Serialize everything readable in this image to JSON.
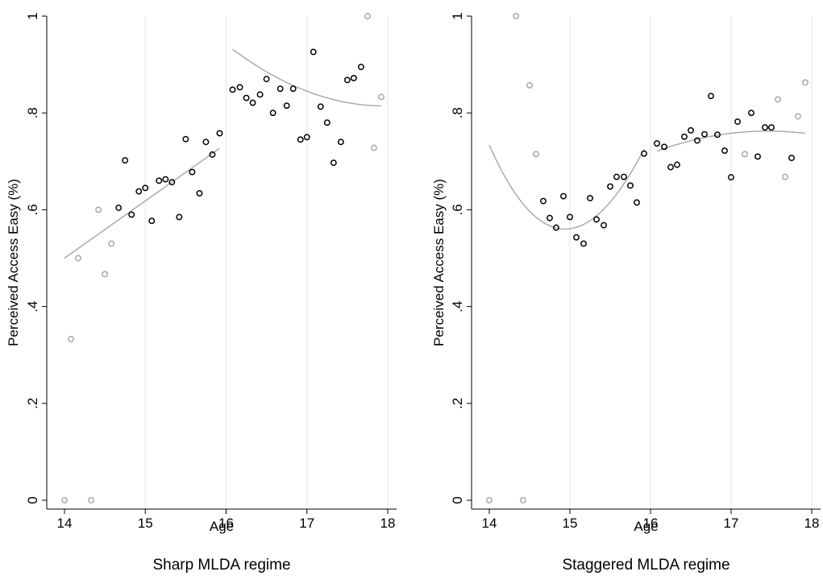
{
  "chart_data": [
    {
      "type": "scatter",
      "subtitle": "Sharp MLDA regime",
      "xlabel": "Age",
      "ylabel": "Perceived Access Easy (%)",
      "xlim": [
        14,
        18
      ],
      "ylim": [
        0,
        1
      ],
      "xticks": [
        {
          "value": 14,
          "label": "14"
        },
        {
          "value": 15,
          "label": "15"
        },
        {
          "value": 16,
          "label": "16"
        },
        {
          "value": 17,
          "label": "17"
        },
        {
          "value": 18,
          "label": "18"
        }
      ],
      "yticks": [
        {
          "value": 0,
          "label": "0"
        },
        {
          "value": 0.2,
          "label": ".2"
        },
        {
          "value": 0.4,
          "label": ".4"
        },
        {
          "value": 0.6,
          "label": ".6"
        },
        {
          "value": 0.8,
          "label": ".8"
        },
        {
          "value": 1,
          "label": "1"
        }
      ],
      "grid": "vertical",
      "colors": {
        "main": "#000000",
        "outlier": "#a6a6a6",
        "fit": "#a6a6a6"
      },
      "points_main": [
        [
          14.67,
          0.604
        ],
        [
          14.75,
          0.702
        ],
        [
          14.83,
          0.59
        ],
        [
          14.92,
          0.638
        ],
        [
          15.0,
          0.645
        ],
        [
          15.08,
          0.577
        ],
        [
          15.17,
          0.66
        ],
        [
          15.25,
          0.663
        ],
        [
          15.33,
          0.657
        ],
        [
          15.42,
          0.585
        ],
        [
          15.5,
          0.746
        ],
        [
          15.58,
          0.678
        ],
        [
          15.67,
          0.634
        ],
        [
          15.75,
          0.74
        ],
        [
          15.83,
          0.714
        ],
        [
          15.92,
          0.758
        ],
        [
          16.08,
          0.848
        ],
        [
          16.17,
          0.853
        ],
        [
          16.25,
          0.831
        ],
        [
          16.33,
          0.821
        ],
        [
          16.42,
          0.838
        ],
        [
          16.5,
          0.87
        ],
        [
          16.58,
          0.8
        ],
        [
          16.67,
          0.85
        ],
        [
          16.75,
          0.815
        ],
        [
          16.83,
          0.85
        ],
        [
          16.92,
          0.745
        ],
        [
          17.0,
          0.75
        ],
        [
          17.08,
          0.926
        ],
        [
          17.17,
          0.813
        ],
        [
          17.25,
          0.78
        ],
        [
          17.33,
          0.697
        ],
        [
          17.42,
          0.74
        ],
        [
          17.5,
          0.868
        ],
        [
          17.58,
          0.872
        ],
        [
          17.67,
          0.895
        ]
      ],
      "points_outlier": [
        [
          14.0,
          0.0
        ],
        [
          14.08,
          0.333
        ],
        [
          14.17,
          0.5
        ],
        [
          14.33,
          0.0
        ],
        [
          14.42,
          0.6
        ],
        [
          14.5,
          0.467
        ],
        [
          14.58,
          0.53
        ],
        [
          17.75,
          1.0
        ],
        [
          17.83,
          0.728
        ],
        [
          17.92,
          0.833
        ]
      ],
      "fits": [
        {
          "kind": "linear",
          "x0": 14.0,
          "x1": 15.92,
          "a": 0.5,
          "b": 0.1182
        },
        {
          "kind": "quadratic",
          "x0": 16.08,
          "x1": 17.92,
          "a": 0.8449,
          "b": -0.0637,
          "c": 0.0334
        }
      ]
    },
    {
      "type": "scatter",
      "subtitle": "Staggered MLDA regime",
      "xlabel": "Age",
      "ylabel": "Perceived Access Easy (%)",
      "xlim": [
        14,
        18
      ],
      "ylim": [
        0,
        1
      ],
      "xticks": [
        {
          "value": 14,
          "label": "14"
        },
        {
          "value": 15,
          "label": "15"
        },
        {
          "value": 16,
          "label": "16"
        },
        {
          "value": 17,
          "label": "17"
        },
        {
          "value": 18,
          "label": "18"
        }
      ],
      "yticks": [
        {
          "value": 0,
          "label": "0"
        },
        {
          "value": 0.2,
          "label": ".2"
        },
        {
          "value": 0.4,
          "label": ".4"
        },
        {
          "value": 0.6,
          "label": ".6"
        },
        {
          "value": 0.8,
          "label": ".8"
        },
        {
          "value": 1,
          "label": "1"
        }
      ],
      "grid": "vertical",
      "colors": {
        "main": "#000000",
        "outlier": "#a6a6a6",
        "fit": "#a6a6a6"
      },
      "points_main": [
        [
          14.67,
          0.618
        ],
        [
          14.75,
          0.583
        ],
        [
          14.83,
          0.563
        ],
        [
          14.92,
          0.628
        ],
        [
          15.0,
          0.585
        ],
        [
          15.08,
          0.543
        ],
        [
          15.17,
          0.53
        ],
        [
          15.25,
          0.624
        ],
        [
          15.33,
          0.58
        ],
        [
          15.42,
          0.568
        ],
        [
          15.5,
          0.648
        ],
        [
          15.58,
          0.668
        ],
        [
          15.67,
          0.668
        ],
        [
          15.75,
          0.65
        ],
        [
          15.83,
          0.615
        ],
        [
          15.92,
          0.716
        ],
        [
          16.08,
          0.737
        ],
        [
          16.17,
          0.73
        ],
        [
          16.25,
          0.688
        ],
        [
          16.33,
          0.693
        ],
        [
          16.42,
          0.751
        ],
        [
          16.5,
          0.764
        ],
        [
          16.58,
          0.743
        ],
        [
          16.67,
          0.756
        ],
        [
          16.75,
          0.835
        ],
        [
          16.83,
          0.755
        ],
        [
          16.92,
          0.722
        ],
        [
          17.0,
          0.667
        ],
        [
          17.08,
          0.782
        ],
        [
          17.25,
          0.8
        ],
        [
          17.33,
          0.71
        ],
        [
          17.42,
          0.77
        ],
        [
          17.5,
          0.77
        ],
        [
          17.75,
          0.707
        ]
      ],
      "points_outlier": [
        [
          14.0,
          0.0
        ],
        [
          14.33,
          1.0
        ],
        [
          14.42,
          0.0
        ],
        [
          14.5,
          0.857
        ],
        [
          14.58,
          0.715
        ],
        [
          17.17,
          0.715
        ],
        [
          17.58,
          0.828
        ],
        [
          17.67,
          0.668
        ],
        [
          17.83,
          0.793
        ],
        [
          17.92,
          0.863
        ]
      ],
      "fits": [
        {
          "kind": "cubic",
          "x0": 14.0,
          "x1": 15.92,
          "x_ref": 14.0,
          "a": 0.734,
          "b": -0.3814,
          "c": 0.2211,
          "d": -0.0129
        },
        {
          "kind": "quadratic",
          "x0": 16.08,
          "x1": 17.92,
          "x_ref": 17.0,
          "a": 0.758,
          "b": 0.0199,
          "c": -0.0219
        }
      ]
    }
  ]
}
